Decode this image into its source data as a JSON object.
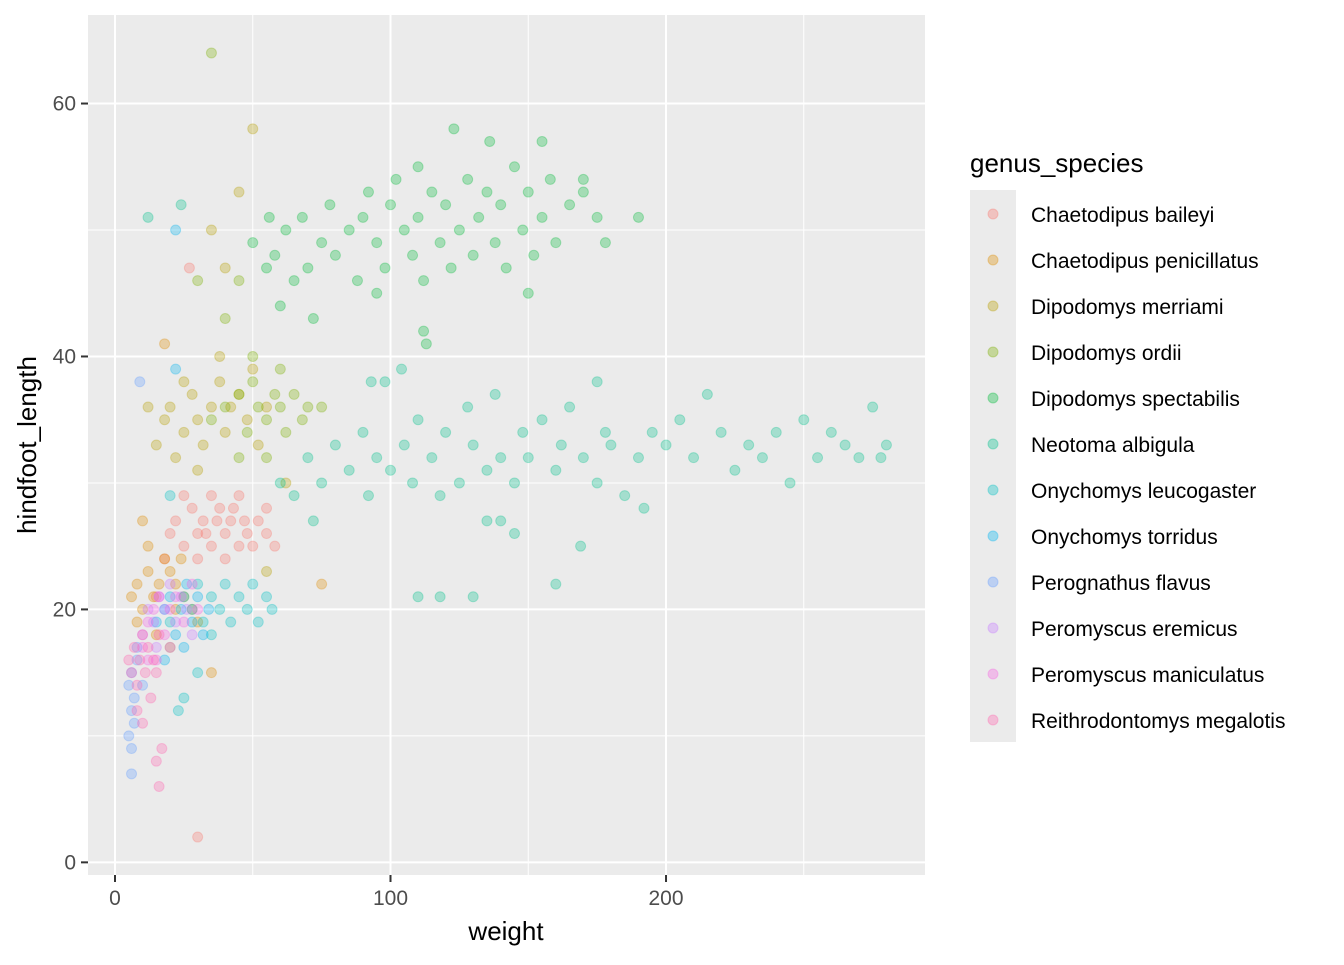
{
  "chart_data": {
    "type": "scatter",
    "title": "",
    "xlabel": "weight",
    "ylabel": "hindfoot_length",
    "xlim": [
      -9.8,
      294
    ],
    "ylim": [
      -1,
      67
    ],
    "x_ticks": [
      0,
      100,
      200
    ],
    "x_minor": [
      50,
      150,
      250
    ],
    "y_ticks": [
      0,
      20,
      40,
      60
    ],
    "y_minor": [
      10,
      30,
      50
    ],
    "grid": true,
    "point_alpha": 0.3,
    "legend": {
      "title": "genus_species",
      "placement": "right"
    },
    "series": [
      {
        "name": "Chaetodipus baileyi",
        "color": "#F8766D",
        "points": [
          [
            20,
            26
          ],
          [
            22,
            27
          ],
          [
            25,
            25
          ],
          [
            28,
            28
          ],
          [
            30,
            26
          ],
          [
            32,
            27
          ],
          [
            35,
            25
          ],
          [
            38,
            28
          ],
          [
            40,
            26
          ],
          [
            42,
            27
          ],
          [
            45,
            29
          ],
          [
            48,
            26
          ],
          [
            50,
            25
          ],
          [
            52,
            27
          ],
          [
            55,
            26
          ],
          [
            25,
            29
          ],
          [
            35,
            29
          ],
          [
            30,
            24
          ],
          [
            40,
            24
          ],
          [
            45,
            25
          ],
          [
            27,
            47
          ],
          [
            30,
            2
          ],
          [
            15,
            21
          ],
          [
            18,
            24
          ],
          [
            58,
            25
          ],
          [
            55,
            28
          ],
          [
            33,
            26
          ],
          [
            43,
            28
          ],
          [
            37,
            27
          ],
          [
            47,
            27
          ]
        ]
      },
      {
        "name": "Chaetodipus penicillatus",
        "color": "#DE8C00",
        "points": [
          [
            6,
            21
          ],
          [
            8,
            22
          ],
          [
            10,
            20
          ],
          [
            12,
            23
          ],
          [
            14,
            21
          ],
          [
            16,
            22
          ],
          [
            18,
            24
          ],
          [
            20,
            23
          ],
          [
            22,
            22
          ],
          [
            25,
            21
          ],
          [
            28,
            20
          ],
          [
            30,
            19
          ],
          [
            12,
            25
          ],
          [
            10,
            27
          ],
          [
            15,
            18
          ],
          [
            20,
            17
          ],
          [
            35,
            15
          ],
          [
            18,
            41
          ],
          [
            75,
            22
          ],
          [
            8,
            19
          ],
          [
            24,
            24
          ],
          [
            22,
            20
          ]
        ]
      },
      {
        "name": "Dipodomys merriami",
        "color": "#B79F00",
        "points": [
          [
            15,
            33
          ],
          [
            18,
            35
          ],
          [
            20,
            36
          ],
          [
            22,
            32
          ],
          [
            25,
            34
          ],
          [
            28,
            37
          ],
          [
            30,
            35
          ],
          [
            32,
            33
          ],
          [
            35,
            36
          ],
          [
            38,
            38
          ],
          [
            40,
            34
          ],
          [
            42,
            36
          ],
          [
            45,
            37
          ],
          [
            48,
            35
          ],
          [
            50,
            39
          ],
          [
            52,
            33
          ],
          [
            55,
            36
          ],
          [
            30,
            31
          ],
          [
            25,
            38
          ],
          [
            38,
            40
          ],
          [
            35,
            50
          ],
          [
            45,
            53
          ],
          [
            50,
            58
          ],
          [
            40,
            47
          ],
          [
            12,
            36
          ],
          [
            55,
            23
          ],
          [
            62,
            30
          ]
        ]
      },
      {
        "name": "Dipodomys ordii",
        "color": "#7CAE00",
        "points": [
          [
            35,
            35
          ],
          [
            40,
            36
          ],
          [
            45,
            37
          ],
          [
            48,
            34
          ],
          [
            50,
            38
          ],
          [
            52,
            36
          ],
          [
            55,
            35
          ],
          [
            58,
            37
          ],
          [
            60,
            36
          ],
          [
            62,
            34
          ],
          [
            65,
            37
          ],
          [
            68,
            35
          ],
          [
            70,
            36
          ],
          [
            75,
            36
          ],
          [
            50,
            40
          ],
          [
            45,
            32
          ],
          [
            55,
            32
          ],
          [
            60,
            39
          ],
          [
            35,
            64
          ],
          [
            40,
            43
          ],
          [
            45,
            46
          ],
          [
            30,
            46
          ]
        ]
      },
      {
        "name": "Dipodomys spectabilis",
        "color": "#00BA38",
        "points": [
          [
            50,
            49
          ],
          [
            55,
            47
          ],
          [
            58,
            48
          ],
          [
            62,
            50
          ],
          [
            65,
            46
          ],
          [
            68,
            51
          ],
          [
            70,
            47
          ],
          [
            75,
            49
          ],
          [
            78,
            52
          ],
          [
            80,
            48
          ],
          [
            85,
            50
          ],
          [
            88,
            46
          ],
          [
            90,
            51
          ],
          [
            92,
            53
          ],
          [
            95,
            49
          ],
          [
            98,
            47
          ],
          [
            100,
            52
          ],
          [
            102,
            54
          ],
          [
            105,
            50
          ],
          [
            108,
            48
          ],
          [
            110,
            51
          ],
          [
            112,
            46
          ],
          [
            115,
            53
          ],
          [
            118,
            49
          ],
          [
            120,
            52
          ],
          [
            122,
            47
          ],
          [
            125,
            50
          ],
          [
            128,
            54
          ],
          [
            130,
            48
          ],
          [
            132,
            51
          ],
          [
            135,
            53
          ],
          [
            138,
            49
          ],
          [
            140,
            52
          ],
          [
            142,
            47
          ],
          [
            145,
            55
          ],
          [
            148,
            50
          ],
          [
            150,
            53
          ],
          [
            152,
            48
          ],
          [
            155,
            51
          ],
          [
            158,
            54
          ],
          [
            160,
            49
          ],
          [
            165,
            52
          ],
          [
            170,
            54
          ],
          [
            175,
            51
          ],
          [
            178,
            49
          ],
          [
            190,
            51
          ],
          [
            123,
            58
          ],
          [
            136,
            57
          ],
          [
            155,
            57
          ],
          [
            110,
            55
          ],
          [
            112,
            42
          ],
          [
            113,
            41
          ],
          [
            60,
            44
          ],
          [
            72,
            43
          ],
          [
            150,
            45
          ],
          [
            170,
            53
          ],
          [
            56,
            51
          ],
          [
            95,
            45
          ]
        ]
      },
      {
        "name": "Neotoma albigula",
        "color": "#00C08B",
        "points": [
          [
            60,
            30
          ],
          [
            65,
            29
          ],
          [
            70,
            32
          ],
          [
            72,
            27
          ],
          [
            75,
            30
          ],
          [
            80,
            33
          ],
          [
            85,
            31
          ],
          [
            90,
            34
          ],
          [
            92,
            29
          ],
          [
            95,
            32
          ],
          [
            98,
            38
          ],
          [
            100,
            31
          ],
          [
            105,
            33
          ],
          [
            108,
            30
          ],
          [
            110,
            35
          ],
          [
            115,
            32
          ],
          [
            118,
            29
          ],
          [
            120,
            34
          ],
          [
            125,
            30
          ],
          [
            128,
            36
          ],
          [
            130,
            33
          ],
          [
            135,
            31
          ],
          [
            138,
            37
          ],
          [
            140,
            32
          ],
          [
            145,
            30
          ],
          [
            148,
            34
          ],
          [
            150,
            32
          ],
          [
            155,
            35
          ],
          [
            160,
            31
          ],
          [
            162,
            33
          ],
          [
            165,
            36
          ],
          [
            170,
            32
          ],
          [
            175,
            30
          ],
          [
            178,
            34
          ],
          [
            180,
            33
          ],
          [
            185,
            29
          ],
          [
            190,
            32
          ],
          [
            192,
            28
          ],
          [
            195,
            34
          ],
          [
            200,
            33
          ],
          [
            205,
            35
          ],
          [
            210,
            32
          ],
          [
            215,
            37
          ],
          [
            220,
            34
          ],
          [
            225,
            31
          ],
          [
            230,
            33
          ],
          [
            235,
            32
          ],
          [
            240,
            34
          ],
          [
            245,
            30
          ],
          [
            250,
            35
          ],
          [
            255,
            32
          ],
          [
            260,
            34
          ],
          [
            265,
            33
          ],
          [
            270,
            32
          ],
          [
            275,
            36
          ],
          [
            278,
            32
          ],
          [
            280,
            33
          ],
          [
            110,
            21
          ],
          [
            118,
            21
          ],
          [
            130,
            21
          ],
          [
            160,
            22
          ],
          [
            169,
            25
          ],
          [
            145,
            26
          ],
          [
            135,
            27
          ],
          [
            140,
            27
          ],
          [
            104,
            39
          ],
          [
            93,
            38
          ],
          [
            175,
            38
          ],
          [
            12,
            51
          ],
          [
            24,
            52
          ]
        ]
      },
      {
        "name": "Onychomys leucogaster",
        "color": "#00BFC4",
        "points": [
          [
            20,
            19
          ],
          [
            25,
            21
          ],
          [
            28,
            20
          ],
          [
            30,
            22
          ],
          [
            32,
            19
          ],
          [
            35,
            21
          ],
          [
            38,
            20
          ],
          [
            40,
            22
          ],
          [
            42,
            19
          ],
          [
            45,
            21
          ],
          [
            48,
            20
          ],
          [
            50,
            22
          ],
          [
            52,
            19
          ],
          [
            55,
            21
          ],
          [
            57,
            20
          ],
          [
            35,
            18
          ],
          [
            25,
            13
          ],
          [
            23,
            12
          ],
          [
            30,
            15
          ],
          [
            20,
            29
          ]
        ]
      },
      {
        "name": "Onychomys torridus",
        "color": "#00B4F0",
        "points": [
          [
            15,
            19
          ],
          [
            18,
            20
          ],
          [
            20,
            21
          ],
          [
            22,
            18
          ],
          [
            24,
            20
          ],
          [
            26,
            22
          ],
          [
            28,
            19
          ],
          [
            30,
            21
          ],
          [
            32,
            18
          ],
          [
            34,
            20
          ],
          [
            22,
            50
          ],
          [
            22,
            39
          ],
          [
            18,
            16
          ],
          [
            25,
            17
          ]
        ]
      },
      {
        "name": "Perognathus flavus",
        "color": "#619CFF",
        "points": [
          [
            5,
            14
          ],
          [
            6,
            15
          ],
          [
            7,
            13
          ],
          [
            8,
            16
          ],
          [
            6,
            12
          ],
          [
            7,
            11
          ],
          [
            5,
            10
          ],
          [
            6,
            9
          ],
          [
            6,
            7
          ],
          [
            8,
            17
          ],
          [
            9,
            38
          ],
          [
            10,
            14
          ]
        ]
      },
      {
        "name": "Peromyscus eremicus",
        "color": "#C77CFF",
        "points": [
          [
            10,
            18
          ],
          [
            12,
            20
          ],
          [
            14,
            19
          ],
          [
            16,
            21
          ],
          [
            18,
            20
          ],
          [
            20,
            22
          ],
          [
            22,
            19
          ],
          [
            24,
            21
          ],
          [
            26,
            20
          ],
          [
            28,
            18
          ],
          [
            15,
            17
          ],
          [
            20,
            17
          ]
        ]
      },
      {
        "name": "Peromyscus maniculatus",
        "color": "#F564E3",
        "points": [
          [
            10,
            17
          ],
          [
            12,
            19
          ],
          [
            14,
            20
          ],
          [
            16,
            21
          ],
          [
            18,
            18
          ],
          [
            20,
            20
          ],
          [
            22,
            21
          ],
          [
            25,
            19
          ],
          [
            28,
            22
          ],
          [
            30,
            20
          ],
          [
            15,
            16
          ],
          [
            12,
            16
          ]
        ]
      },
      {
        "name": "Reithrodontomys megalotis",
        "color": "#FF64B0",
        "points": [
          [
            5,
            16
          ],
          [
            6,
            15
          ],
          [
            7,
            17
          ],
          [
            8,
            14
          ],
          [
            9,
            16
          ],
          [
            10,
            18
          ],
          [
            11,
            15
          ],
          [
            12,
            17
          ],
          [
            13,
            13
          ],
          [
            14,
            16
          ],
          [
            15,
            15
          ],
          [
            16,
            18
          ],
          [
            8,
            12
          ],
          [
            10,
            11
          ],
          [
            16,
            6
          ],
          [
            17,
            9
          ],
          [
            15,
            8
          ]
        ]
      }
    ]
  }
}
